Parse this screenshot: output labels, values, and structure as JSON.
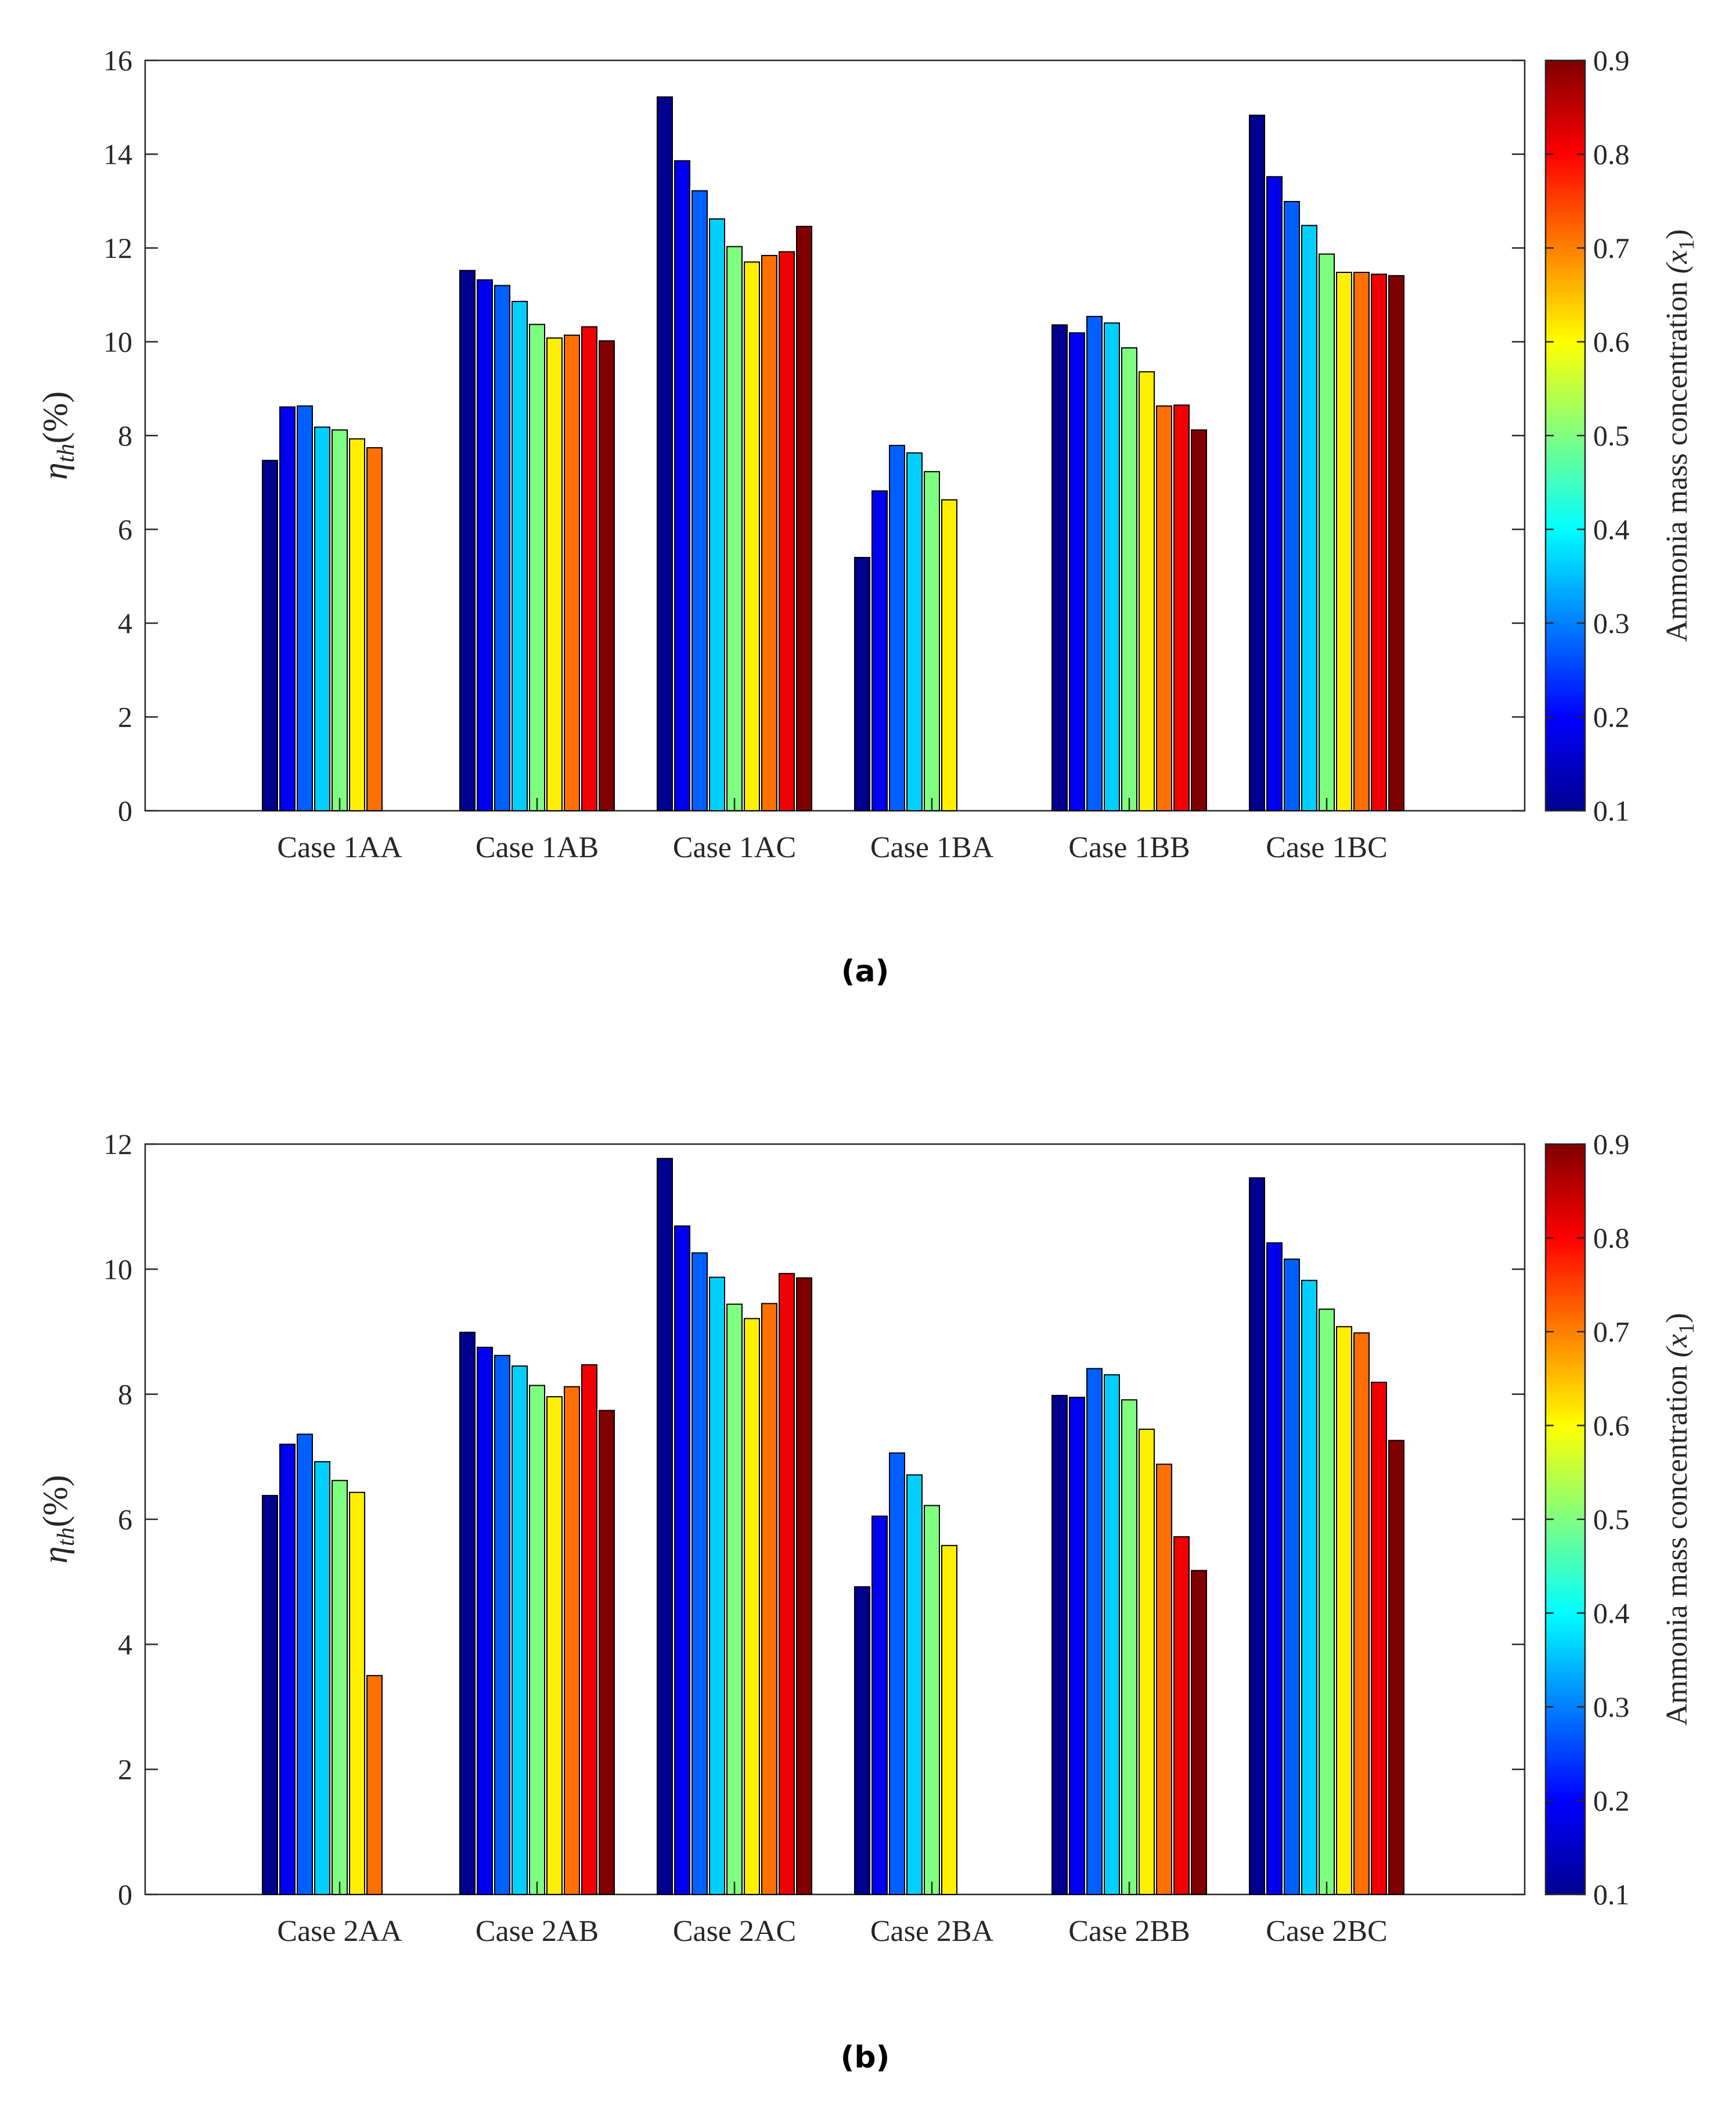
{
  "chart_data": [
    {
      "type": "bar",
      "caption": "(a)",
      "ylabel": "η_th(%)",
      "ylabel_main": "η",
      "ylabel_sub": "th",
      "ylabel_suffix": "(%)",
      "ylim": [
        0,
        16
      ],
      "yticks": [
        0,
        2,
        4,
        6,
        8,
        10,
        12,
        14,
        16
      ],
      "categories": [
        "Case 1AA",
        "Case 1AB",
        "Case 1AC",
        "Case 1BA",
        "Case 1BB",
        "Case 1BC"
      ],
      "series": [
        {
          "name": "0.1",
          "values": [
            7.47,
            11.52,
            15.22,
            5.4,
            10.36,
            14.83
          ]
        },
        {
          "name": "0.2",
          "values": [
            8.61,
            11.32,
            13.86,
            6.82,
            10.19,
            13.52
          ]
        },
        {
          "name": "0.3",
          "values": [
            8.63,
            11.2,
            13.22,
            7.79,
            10.54,
            12.99
          ]
        },
        {
          "name": "0.4",
          "values": [
            8.18,
            10.86,
            12.62,
            7.63,
            10.4,
            12.48
          ]
        },
        {
          "name": "0.5",
          "values": [
            8.12,
            10.37,
            12.03,
            7.23,
            9.87,
            11.87
          ]
        },
        {
          "name": "0.6",
          "values": [
            7.93,
            10.08,
            11.7,
            6.63,
            9.36,
            11.48
          ]
        },
        {
          "name": "0.7",
          "values": [
            7.74,
            10.14,
            11.84,
            0,
            8.63,
            11.48
          ]
        },
        {
          "name": "0.8",
          "values": [
            0,
            10.32,
            11.92,
            0,
            8.65,
            11.44
          ]
        },
        {
          "name": "0.9",
          "values": [
            0,
            10.02,
            12.46,
            0,
            8.12,
            11.41
          ]
        }
      ],
      "colorbar": {
        "label": "Ammonia mass concentration",
        "label_var": "(x",
        "label_sub": "1",
        "label_close": ")",
        "ticks": [
          "0.1",
          "0.2",
          "0.3",
          "0.4",
          "0.5",
          "0.6",
          "0.7",
          "0.8",
          "0.9"
        ],
        "colors": [
          "#00008F",
          "#0000F0",
          "#0060FF",
          "#00CFFF",
          "#7FFF80",
          "#FFEF00",
          "#FF7000",
          "#F00000",
          "#800000"
        ]
      }
    },
    {
      "type": "bar",
      "caption": "(b)",
      "ylabel": "η_th(%)",
      "ylabel_main": "η",
      "ylabel_sub": "th",
      "ylabel_suffix": "(%)",
      "ylim": [
        0,
        12
      ],
      "yticks": [
        0,
        2,
        4,
        6,
        8,
        10,
        12
      ],
      "categories": [
        "Case 2AA",
        "Case 2AB",
        "Case 2AC",
        "Case 2BA",
        "Case 2BB",
        "Case 2BC"
      ],
      "series": [
        {
          "name": "0.1",
          "values": [
            6.38,
            8.99,
            11.77,
            4.92,
            7.98,
            11.46
          ]
        },
        {
          "name": "0.2",
          "values": [
            7.2,
            8.75,
            10.69,
            6.05,
            7.95,
            10.42
          ]
        },
        {
          "name": "0.3",
          "values": [
            7.36,
            8.62,
            10.26,
            7.06,
            8.41,
            10.16
          ]
        },
        {
          "name": "0.4",
          "values": [
            6.92,
            8.45,
            9.87,
            6.71,
            8.31,
            9.82
          ]
        },
        {
          "name": "0.5",
          "values": [
            6.62,
            8.14,
            9.44,
            6.22,
            7.91,
            9.36
          ]
        },
        {
          "name": "0.6",
          "values": [
            6.43,
            7.96,
            9.21,
            5.58,
            7.44,
            9.08
          ]
        },
        {
          "name": "0.7",
          "values": [
            3.5,
            8.12,
            9.45,
            0,
            6.88,
            8.98
          ]
        },
        {
          "name": "0.8",
          "values": [
            0,
            8.47,
            9.93,
            0,
            5.72,
            8.19
          ]
        },
        {
          "name": "0.9",
          "values": [
            0,
            7.74,
            9.86,
            0,
            5.18,
            7.26
          ]
        }
      ],
      "colorbar": {
        "label": "Ammonia mass concentration",
        "label_var": "(x",
        "label_sub": "1",
        "label_close": ")",
        "ticks": [
          "0.1",
          "0.2",
          "0.3",
          "0.4",
          "0.5",
          "0.6",
          "0.7",
          "0.8",
          "0.9"
        ],
        "colors": [
          "#00008F",
          "#0000F0",
          "#0060FF",
          "#00CFFF",
          "#7FFF80",
          "#FFEF00",
          "#FF7000",
          "#F00000",
          "#800000"
        ]
      }
    }
  ]
}
